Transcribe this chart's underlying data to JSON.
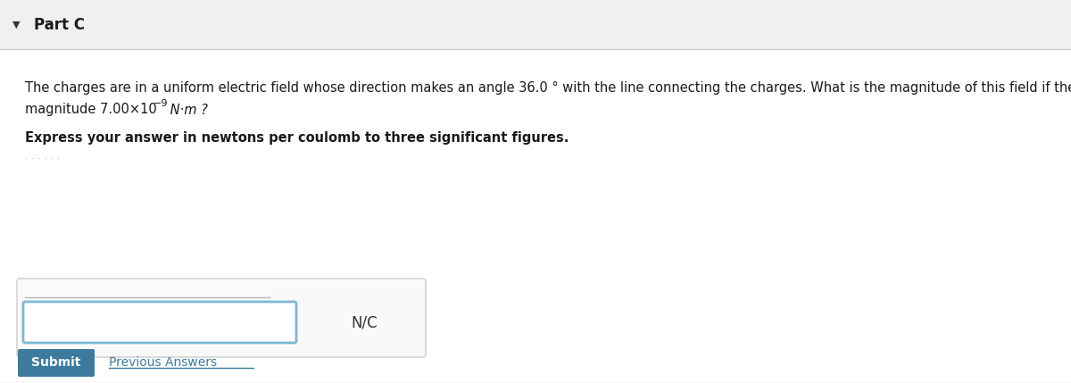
{
  "bg_color": "#f5f5f5",
  "header_bg": "#f0f0f0",
  "header_text": "Part C",
  "triangle_color": "#333333",
  "body_bg": "#ffffff",
  "line1": "The charges are in a uniform electric field whose direction makes an angle 36.0 ° with the line connecting the charges. What is the magnitude of this field if the torque exerted on the dipole has",
  "line2_prefix": "magnitude 7.00×10",
  "line2_sup": "−9",
  "line2_suffix": " N·m ?",
  "bold_line": "Express your answer in newtons per coulomb to three significant figures.",
  "unit_label": "N/C",
  "submit_text": "Submit",
  "prev_answers_text": "Previous Answers",
  "submit_bg": "#3d7a9e",
  "submit_text_color": "#ffffff",
  "prev_answers_color": "#3d7a9e",
  "input_border_color": "#7eb8d4",
  "outer_border_color": "#cccccc",
  "separator_color": "#cccccc",
  "hint_color": "#aaaaaa",
  "text_color": "#1a1a1a"
}
